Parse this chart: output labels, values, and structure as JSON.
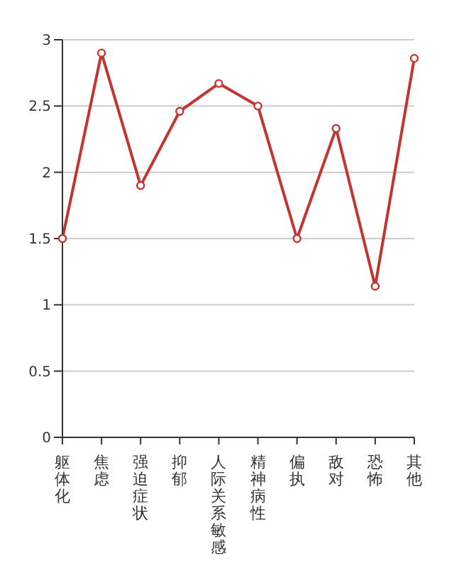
{
  "chart_data": {
    "type": "line",
    "categories": [
      "躯体化",
      "焦虑",
      "强迫症状",
      "抑郁",
      "人际关系敏感",
      "精神病性",
      "偏执",
      "敌对",
      "恐怖",
      "其他"
    ],
    "series": [
      {
        "color": "#c23531",
        "values": [
          1.5,
          2.9,
          1.9,
          2.46,
          2.67,
          2.5,
          1.5,
          2.33,
          1.14,
          2.86
        ]
      }
    ],
    "ylim": [
      0,
      3
    ],
    "yticks": [
      0,
      0.5,
      1,
      1.5,
      2,
      2.5,
      3
    ],
    "grid": "y",
    "marker": "circle",
    "line_style": "solid",
    "legend": false
  }
}
